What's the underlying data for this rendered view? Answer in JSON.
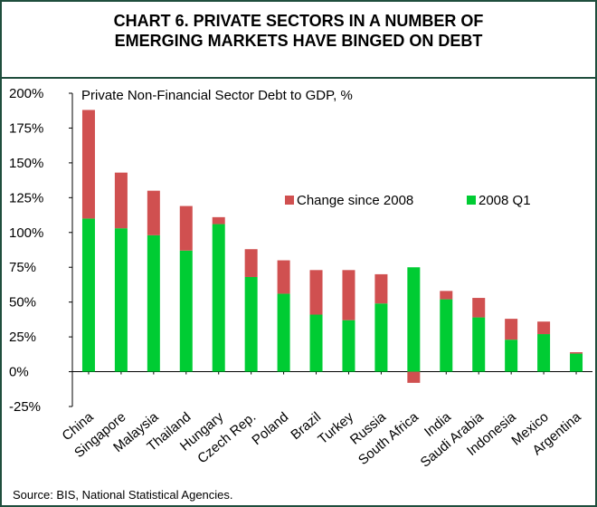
{
  "chart_data": {
    "type": "bar",
    "stacked": true,
    "title_line1": "CHART 6. PRIVATE SECTORS IN A NUMBER OF",
    "title_line2": "EMERGING MARKETS HAVE BINGED ON DEBT",
    "subtitle": "Private Non-Financial Sector Debt to GDP, %",
    "source": "Source: BIS, National Statistical Agencies.",
    "categories": [
      "China",
      "Singapore",
      "Malaysia",
      "Thailand",
      "Hungary",
      "Czech Rep.",
      "Poland",
      "Brazil",
      "Turkey",
      "Russia",
      "South Africa",
      "India",
      "Saudi Arabia",
      "Indonesia",
      "Mexico",
      "Argentina"
    ],
    "series": [
      {
        "name": "2008 Q1",
        "color": "#00cc33",
        "values": [
          110,
          103,
          98,
          87,
          106,
          68,
          56,
          41,
          37,
          49,
          75,
          52,
          39,
          23,
          27,
          13
        ]
      },
      {
        "name": "Change since 2008",
        "color": "#d05050",
        "values": [
          78,
          40,
          32,
          32,
          5,
          20,
          24,
          32,
          36,
          21,
          -8,
          6,
          14,
          15,
          9,
          1
        ]
      }
    ],
    "ylim": [
      -25,
      200
    ],
    "yticks": [
      -25,
      0,
      25,
      50,
      75,
      100,
      125,
      150,
      175,
      200
    ],
    "ytick_labels": [
      "-25%",
      "0%",
      "25%",
      "50%",
      "75%",
      "100%",
      "125%",
      "150%",
      "175%",
      "200%"
    ],
    "legend_position": "center-right",
    "grid": false
  }
}
